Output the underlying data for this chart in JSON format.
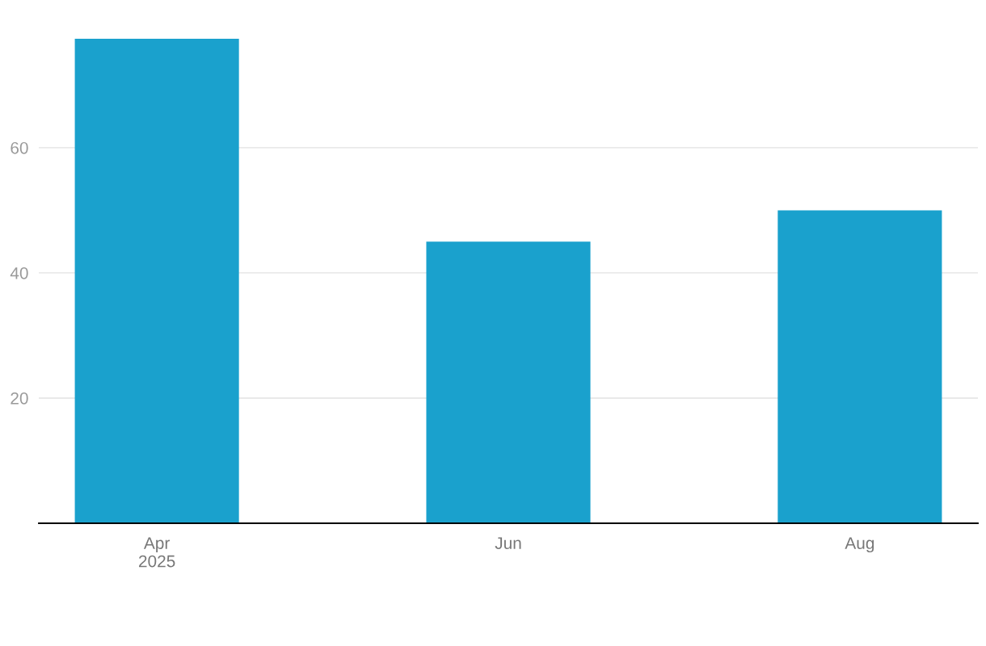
{
  "chart_data": {
    "type": "bar",
    "categories": [
      "Apr\n2025",
      "Jun",
      "Aug"
    ],
    "values": [
      77.4,
      45,
      50
    ],
    "color": "#1aa1cd",
    "ylim": [
      0,
      77.4
    ],
    "yticks": [
      20,
      40,
      60
    ],
    "grid": "y"
  }
}
